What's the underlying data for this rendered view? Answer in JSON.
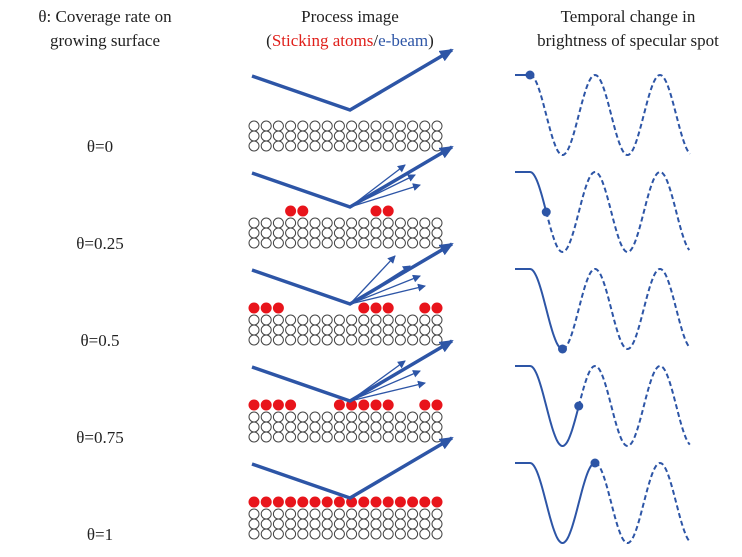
{
  "header": {
    "coverage": [
      "θ: Coverage rate on",
      "growing surface"
    ],
    "process": {
      "title": "Process image",
      "subtitle": [
        "(",
        "Sticking atoms",
        "/",
        "e-beam",
        ")"
      ]
    },
    "brightness": [
      "Temporal change in",
      "brightness of specular spot"
    ]
  },
  "rows": [
    {
      "label": "θ=0"
    },
    {
      "label": "θ=0.25"
    },
    {
      "label": "θ=0.5"
    },
    {
      "label": "θ=0.75"
    },
    {
      "label": "θ=1"
    }
  ]
}
